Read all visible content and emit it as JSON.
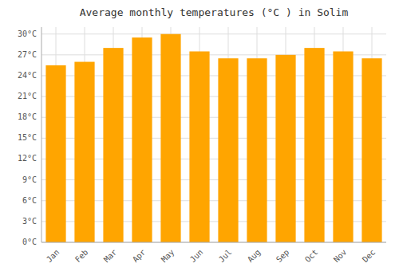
{
  "chart_data": {
    "type": "bar",
    "title": "Average monthly temperatures (°C ) in Solim",
    "categories": [
      "Jan",
      "Feb",
      "Mar",
      "Apr",
      "May",
      "Jun",
      "Jul",
      "Aug",
      "Sep",
      "Oct",
      "Nov",
      "Dec"
    ],
    "values": [
      25.5,
      26.0,
      28.0,
      29.5,
      30.0,
      27.5,
      26.5,
      26.5,
      27.0,
      28.0,
      27.5,
      26.5
    ],
    "color": "#FFA500",
    "ylim": [
      0,
      31
    ],
    "yticks": [
      {
        "value": 0,
        "label": "0°C"
      },
      {
        "value": 3,
        "label": "3°C"
      },
      {
        "value": 6,
        "label": "6°C"
      },
      {
        "value": 9,
        "label": "9°C"
      },
      {
        "value": 12,
        "label": "12°C"
      },
      {
        "value": 15,
        "label": "15°C"
      },
      {
        "value": 18,
        "label": "18°C"
      },
      {
        "value": 21,
        "label": "21°C"
      },
      {
        "value": 24,
        "label": "24°C"
      },
      {
        "value": 27,
        "label": "27°C"
      },
      {
        "value": 30,
        "label": "30°C"
      }
    ],
    "grid": true
  }
}
